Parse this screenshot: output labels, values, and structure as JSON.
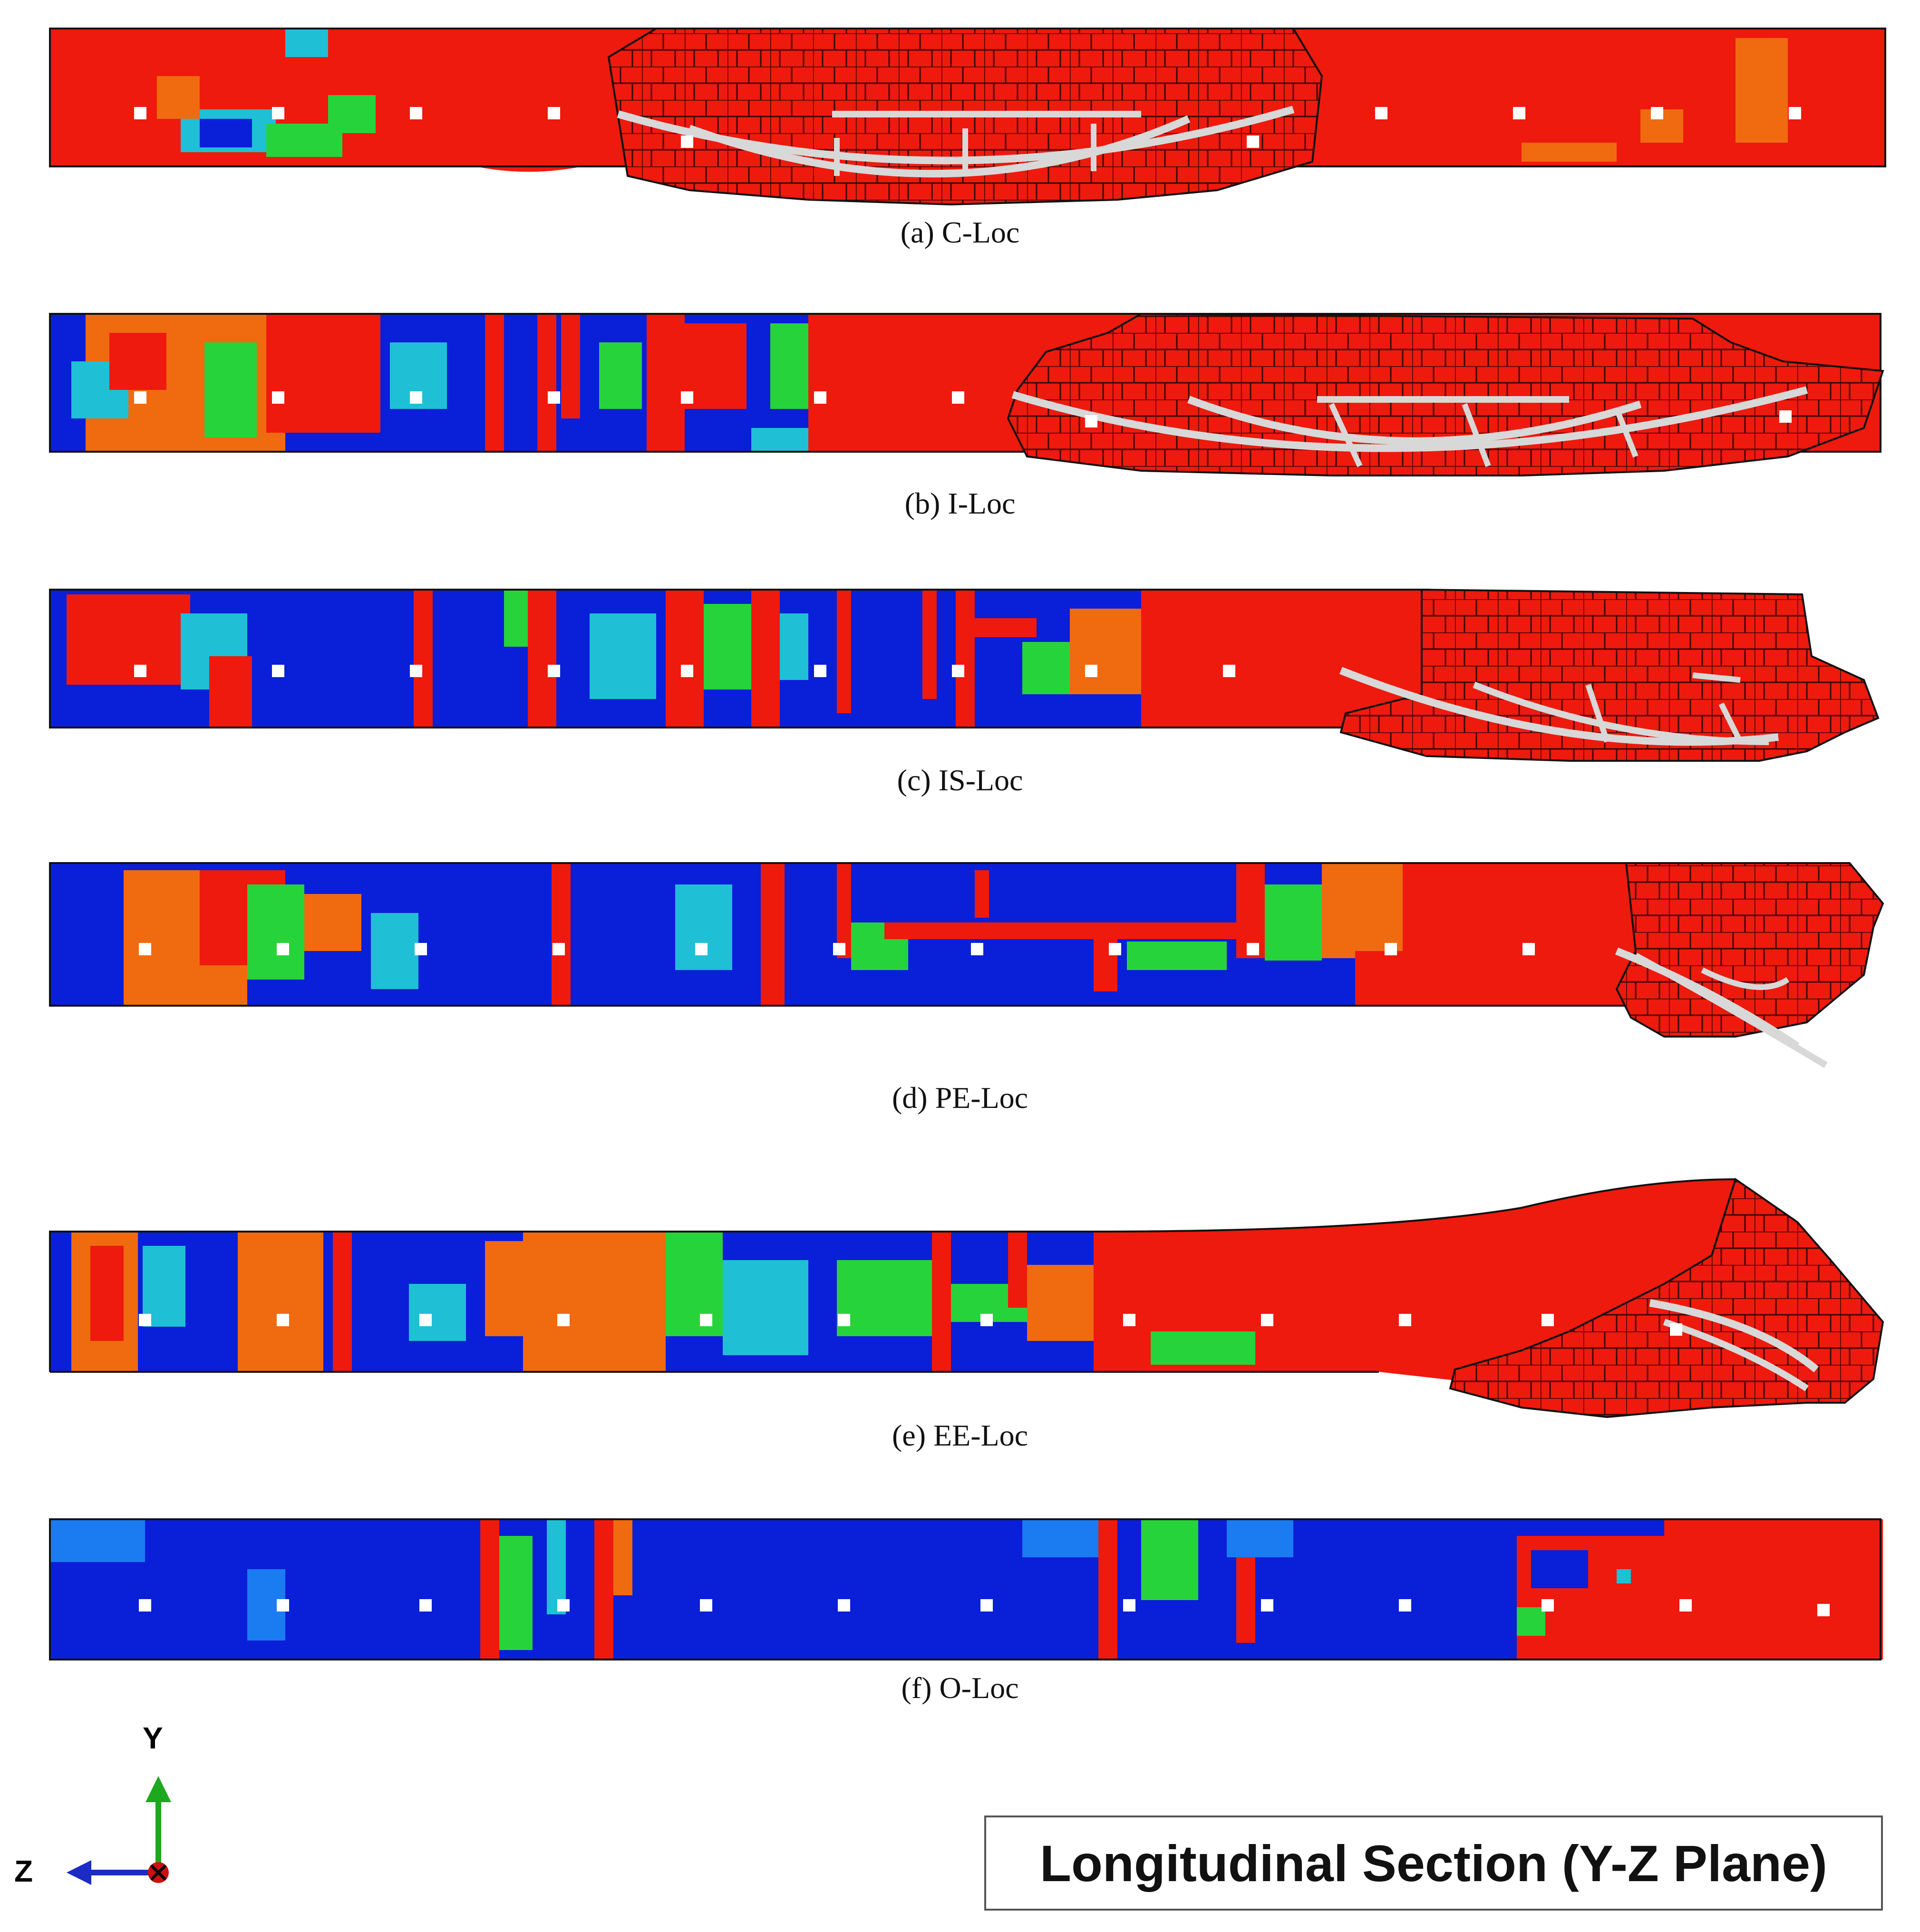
{
  "panels": [
    {
      "id": "a",
      "caption": "(a) C-Loc"
    },
    {
      "id": "b",
      "caption": "(b) I-Loc"
    },
    {
      "id": "c",
      "caption": "(c) IS-Loc"
    },
    {
      "id": "d",
      "caption": "(d) PE-Loc"
    },
    {
      "id": "e",
      "caption": "(e) EE-Loc"
    },
    {
      "id": "f",
      "caption": "(f) O-Loc"
    }
  ],
  "plane_label": "Longitudinal Section (Y-Z Plane)",
  "axes": {
    "y": "Y",
    "z": "Z"
  },
  "colors": {
    "damaged": "#ee1a0d",
    "intact": "#0a1fd8",
    "mid_high": "#f06a10",
    "mid": "#27d33a",
    "mid_low": "#1fbfd6",
    "rebar": "#d8d8d8",
    "y_axis": "#1ea81e",
    "z_axis": "#1a2cc4",
    "x_marker": "#cc1010"
  }
}
